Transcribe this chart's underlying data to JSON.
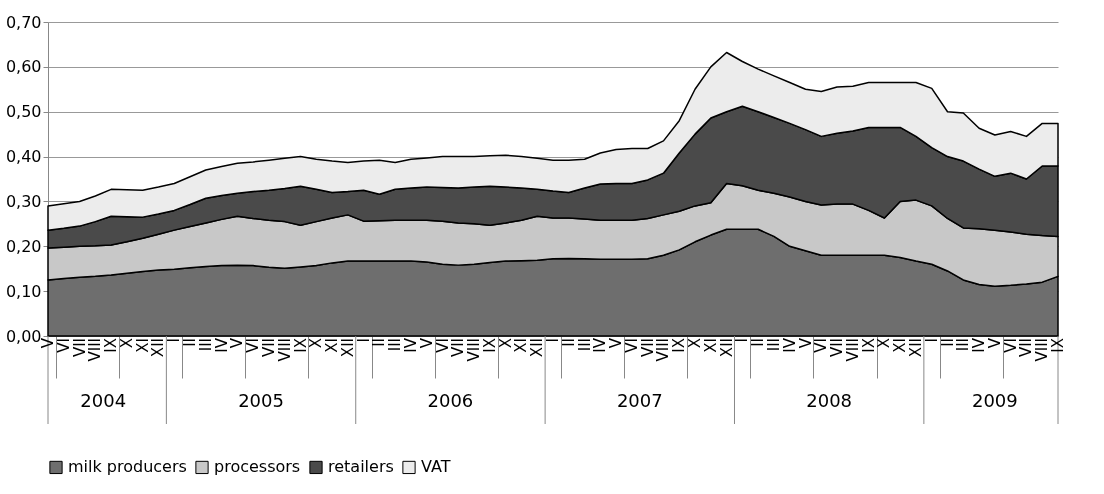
{
  "chart_data": {
    "type": "area",
    "stacked": true,
    "legend": "bottom",
    "grid": "y",
    "categories": [
      "V",
      "VI",
      "VII",
      "VIII",
      "IX",
      "X",
      "XI",
      "XII",
      "I",
      "II",
      "III",
      "IV",
      "V",
      "VI",
      "VII",
      "VIII",
      "IX",
      "X",
      "XI",
      "XII",
      "I",
      "II",
      "III",
      "IV",
      "V",
      "VI",
      "VII",
      "VIII",
      "IX",
      "X",
      "XI",
      "XII",
      "I",
      "II",
      "III",
      "IV",
      "V",
      "VI",
      "VII",
      "VIII",
      "IX",
      "X",
      "XI",
      "XII",
      "I",
      "II",
      "III",
      "IV",
      "V",
      "VI",
      "VII",
      "VIII",
      "IX",
      "X",
      "XI",
      "XII",
      "I",
      "II",
      "III",
      "IV",
      "V",
      "VI",
      "VII",
      "VIII",
      "IX"
    ],
    "annotations": [
      "2004",
      "2005",
      "2006",
      "2007",
      "2008",
      "2009"
    ],
    "ylim": [
      0,
      0.7
    ],
    "yticks": [
      {
        "value": 0,
        "label": "0,00"
      },
      {
        "value": 0.1,
        "label": "0,10"
      },
      {
        "value": 0.2,
        "label": "0,20"
      },
      {
        "value": 0.3,
        "label": "0,30"
      },
      {
        "value": 0.4,
        "label": "0,40"
      },
      {
        "value": 0.5,
        "label": "0,50"
      },
      {
        "value": 0.6,
        "label": "0,60"
      },
      {
        "value": 0.7,
        "label": "0,70"
      }
    ],
    "series": [
      {
        "name": "milk producers",
        "color": "#6e6e6e",
        "values": [
          0.125,
          0.128,
          0.131,
          0.133,
          0.136,
          0.14,
          0.144,
          0.147,
          0.149,
          0.152,
          0.155,
          0.157,
          0.158,
          0.157,
          0.153,
          0.151,
          0.154,
          0.157,
          0.163,
          0.167,
          0.167,
          0.167,
          0.167,
          0.167,
          0.165,
          0.16,
          0.158,
          0.16,
          0.164,
          0.167,
          0.168,
          0.169,
          0.172,
          0.173,
          0.172,
          0.171,
          0.171,
          0.171,
          0.172,
          0.18,
          0.192,
          0.21,
          0.225,
          0.238,
          0.238,
          0.238,
          0.222,
          0.2,
          0.19,
          0.18,
          0.18,
          0.18,
          0.18,
          0.18,
          0.175,
          0.167,
          0.16,
          0.145,
          0.125,
          0.115,
          0.111,
          0.113,
          0.116,
          0.12,
          0.133
        ]
      },
      {
        "name": "processors",
        "color": "#c8c8c8",
        "values": [
          0.071,
          0.07,
          0.069,
          0.068,
          0.067,
          0.07,
          0.074,
          0.08,
          0.087,
          0.092,
          0.097,
          0.103,
          0.109,
          0.105,
          0.105,
          0.104,
          0.093,
          0.098,
          0.1,
          0.103,
          0.089,
          0.09,
          0.091,
          0.091,
          0.093,
          0.096,
          0.094,
          0.09,
          0.083,
          0.085,
          0.09,
          0.098,
          0.091,
          0.09,
          0.089,
          0.087,
          0.087,
          0.087,
          0.09,
          0.09,
          0.086,
          0.08,
          0.072,
          0.102,
          0.097,
          0.087,
          0.096,
          0.11,
          0.11,
          0.112,
          0.114,
          0.114,
          0.1,
          0.083,
          0.125,
          0.136,
          0.13,
          0.117,
          0.116,
          0.124,
          0.125,
          0.119,
          0.111,
          0.104,
          0.089
        ]
      },
      {
        "name": "retailers",
        "color": "#4a4a4a",
        "values": [
          0.04,
          0.042,
          0.045,
          0.054,
          0.064,
          0.056,
          0.047,
          0.045,
          0.044,
          0.049,
          0.055,
          0.053,
          0.051,
          0.06,
          0.067,
          0.074,
          0.087,
          0.072,
          0.057,
          0.052,
          0.069,
          0.059,
          0.069,
          0.072,
          0.074,
          0.075,
          0.078,
          0.082,
          0.087,
          0.08,
          0.072,
          0.06,
          0.06,
          0.057,
          0.069,
          0.081,
          0.082,
          0.082,
          0.086,
          0.093,
          0.13,
          0.16,
          0.189,
          0.16,
          0.177,
          0.175,
          0.169,
          0.164,
          0.16,
          0.153,
          0.158,
          0.163,
          0.185,
          0.202,
          0.165,
          0.142,
          0.13,
          0.138,
          0.149,
          0.133,
          0.12,
          0.131,
          0.123,
          0.155,
          0.157
        ]
      },
      {
        "name": "VAT",
        "color": "#ececec",
        "values": [
          0.054,
          0.055,
          0.055,
          0.057,
          0.06,
          0.06,
          0.06,
          0.06,
          0.06,
          0.062,
          0.063,
          0.065,
          0.067,
          0.066,
          0.067,
          0.067,
          0.066,
          0.067,
          0.07,
          0.065,
          0.065,
          0.076,
          0.06,
          0.064,
          0.065,
          0.069,
          0.07,
          0.068,
          0.068,
          0.071,
          0.07,
          0.069,
          0.069,
          0.072,
          0.064,
          0.069,
          0.076,
          0.078,
          0.07,
          0.072,
          0.072,
          0.1,
          0.114,
          0.132,
          0.1,
          0.095,
          0.093,
          0.091,
          0.09,
          0.1,
          0.103,
          0.1,
          0.1,
          0.1,
          0.1,
          0.12,
          0.132,
          0.1,
          0.107,
          0.091,
          0.092,
          0.093,
          0.095,
          0.095,
          0.095
        ]
      }
    ]
  }
}
